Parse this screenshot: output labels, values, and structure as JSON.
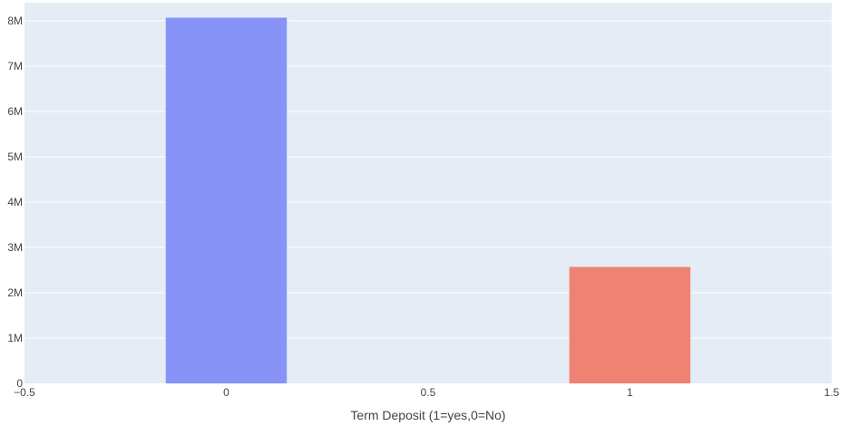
{
  "chart_data": {
    "type": "bar",
    "title": "",
    "xlabel": "Term Deposit (1=yes,0=No)",
    "ylabel": "",
    "x": [
      0,
      1
    ],
    "values": [
      8070000,
      2570000
    ],
    "bar_colors": [
      "#8893f8",
      "#ee8373"
    ],
    "bar_width": 0.3,
    "xlim": [
      -0.5,
      1.5
    ],
    "ylim": [
      0,
      8400000
    ],
    "x_ticks": [
      -0.5,
      0,
      0.5,
      1,
      1.5
    ],
    "x_tick_labels": [
      "−0.5",
      "0",
      "0.5",
      "1",
      "1.5"
    ],
    "y_ticks": [
      0,
      1000000,
      2000000,
      3000000,
      4000000,
      5000000,
      6000000,
      7000000,
      8000000
    ],
    "y_tick_labels": [
      "0",
      "1M",
      "2M",
      "3M",
      "4M",
      "5M",
      "6M",
      "7M",
      "8M"
    ],
    "grid": true,
    "legend": "none",
    "plot_bg": "#e5ecf6",
    "grid_color": "#ffffff"
  }
}
